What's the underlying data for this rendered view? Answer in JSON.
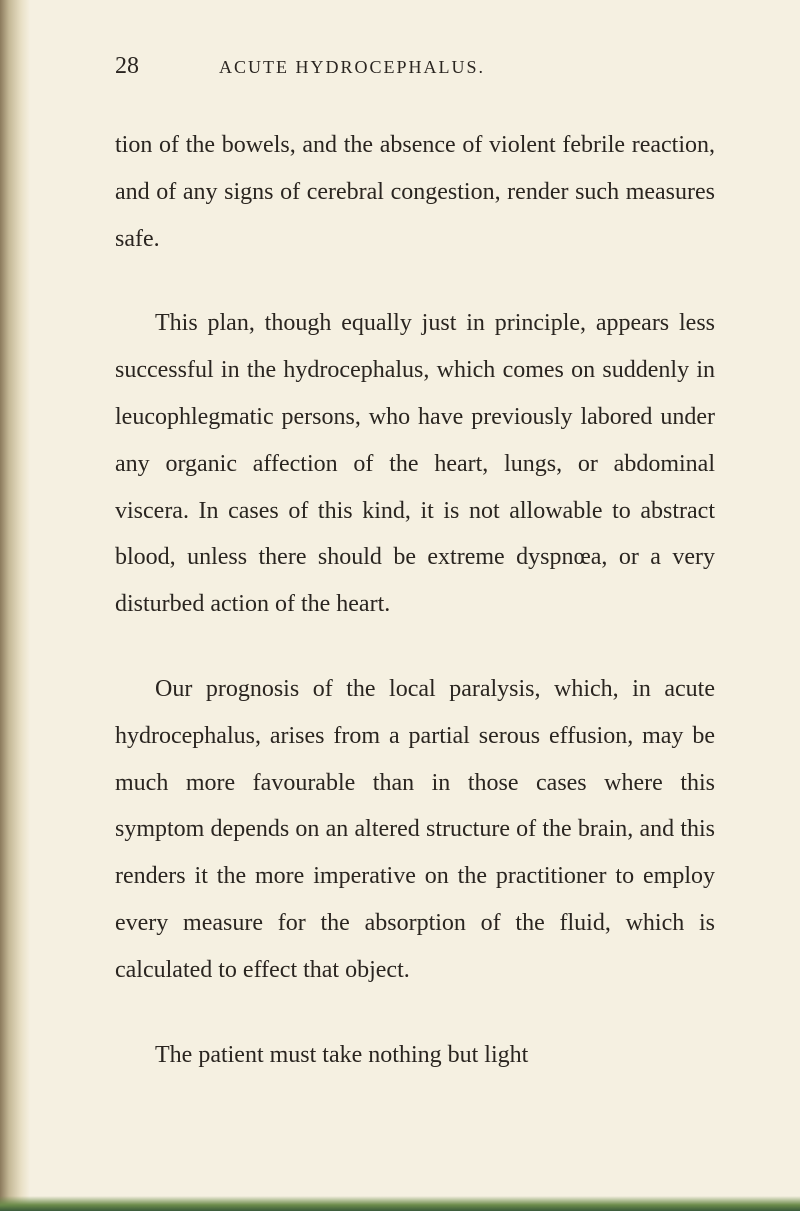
{
  "page": {
    "number": "28",
    "runningTitle": "ACUTE HYDROCEPHALUS.",
    "background_color": "#f5f0e1",
    "text_color": "#2a2520",
    "font_family": "Georgia, Times New Roman, serif",
    "body_font_size": 24,
    "line_height": 1.95,
    "header_font_size": 18,
    "page_number_font_size": 24
  },
  "paragraphs": {
    "p1": "tion of the bowels, and the absence of violent febrile reaction, and of any signs of cerebral congestion, render such measures safe.",
    "p2": "This plan, though equally just in principle, appears less successful in the hydrocephalus, which comes on suddenly in leucophlegmatic persons, who have previously labored under any organic affection of the heart, lungs, or abdominal viscera. In cases of this kind, it is not allowable to abstract blood, unless there should be extreme dyspnœa, or a very disturbed action of the heart.",
    "p3": "Our prognosis of the local paralysis, which, in acute hydrocephalus, arises from a partial serous effusion, may be much more favourable than in those cases where this symptom depends on an altered structure of the brain, and this renders it the more imperative on the practitioner to employ every measure for the absorption of the fluid, which is calculated to effect that object.",
    "p4": "The patient must take nothing but light"
  }
}
